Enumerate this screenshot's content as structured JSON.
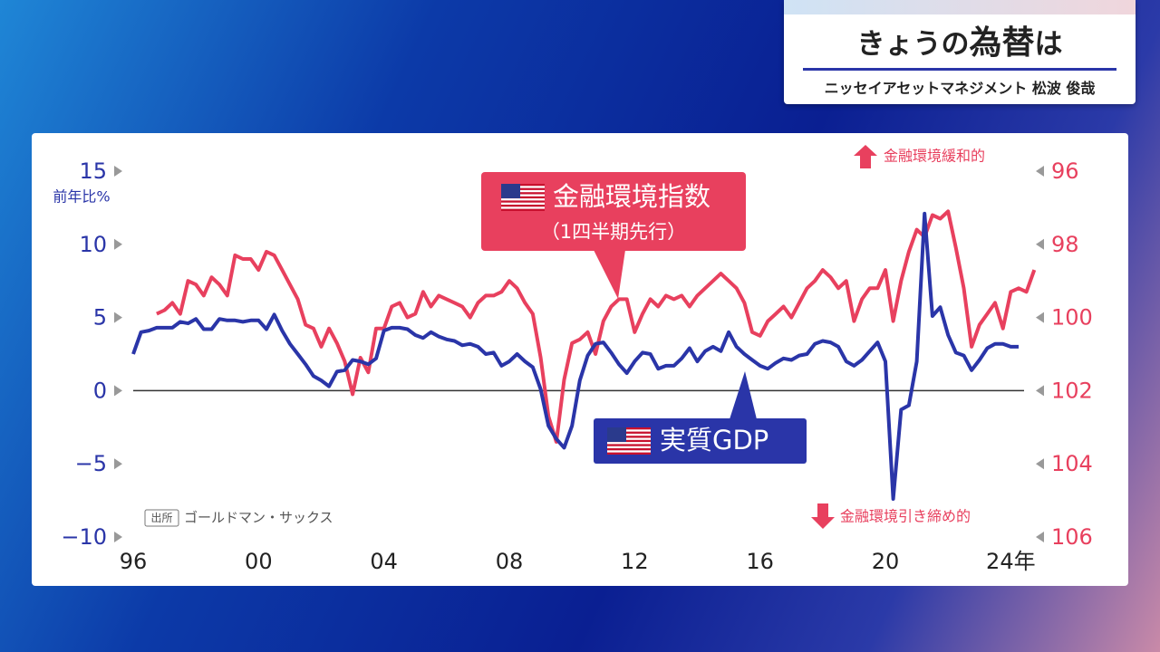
{
  "header": {
    "title": [
      "きょうの",
      "為替",
      "は"
    ],
    "subtitle": "ニッセイアセットマネジメント 松波 俊哉"
  },
  "chart_data": {
    "type": "line",
    "y_label": "前年比%",
    "annotations": {
      "fci_note": "（1四半期先行）",
      "easing": "金融環境緩和的",
      "tightening": "金融環境引き締め的",
      "source_tag": "出所",
      "source": "ゴールドマン・サックス"
    },
    "x": [
      1996,
      1996.25,
      1996.5,
      1996.75,
      1997,
      1997.25,
      1997.5,
      1997.75,
      1998,
      1998.25,
      1998.5,
      1998.75,
      1999,
      1999.25,
      1999.5,
      1999.75,
      2000,
      2000.25,
      2000.5,
      2000.75,
      2001,
      2001.25,
      2001.5,
      2001.75,
      2002,
      2002.25,
      2002.5,
      2002.75,
      2003,
      2003.25,
      2003.5,
      2003.75,
      2004,
      2004.25,
      2004.5,
      2004.75,
      2005,
      2005.25,
      2005.5,
      2005.75,
      2006,
      2006.25,
      2006.5,
      2006.75,
      2007,
      2007.25,
      2007.5,
      2007.75,
      2008,
      2008.25,
      2008.5,
      2008.75,
      2009,
      2009.25,
      2009.5,
      2009.75,
      2010,
      2010.25,
      2010.5,
      2010.75,
      2011,
      2011.25,
      2011.5,
      2011.75,
      2012,
      2012.25,
      2012.5,
      2012.75,
      2013,
      2013.25,
      2013.5,
      2013.75,
      2014,
      2014.25,
      2014.5,
      2014.75,
      2015,
      2015.25,
      2015.5,
      2015.75,
      2016,
      2016.25,
      2016.5,
      2016.75,
      2017,
      2017.25,
      2017.5,
      2017.75,
      2018,
      2018.25,
      2018.5,
      2018.75,
      2019,
      2019.25,
      2019.5,
      2019.75,
      2020,
      2020.25,
      2020.5,
      2020.75,
      2021,
      2021.25,
      2021.5,
      2021.75,
      2022,
      2022.25,
      2022.5,
      2022.75,
      2023,
      2023.25,
      2023.5,
      2023.75,
      2024,
      2024.25,
      2024.5,
      2024.75
    ],
    "series": [
      {
        "name": "実質GDP",
        "color": "#2a35a8",
        "axis": "y",
        "values": [
          2.5,
          4.0,
          4.1,
          4.3,
          4.3,
          4.3,
          4.7,
          4.6,
          4.9,
          4.2,
          4.2,
          4.9,
          4.8,
          4.8,
          4.7,
          4.8,
          4.8,
          4.2,
          5.2,
          4.1,
          3.2,
          2.5,
          1.8,
          1.0,
          0.7,
          0.3,
          1.3,
          1.4,
          2.1,
          2.0,
          1.8,
          2.2,
          4.1,
          4.3,
          4.3,
          4.2,
          3.8,
          3.6,
          4.0,
          3.7,
          3.5,
          3.4,
          3.1,
          3.2,
          3.0,
          2.5,
          2.6,
          1.7,
          2.0,
          2.5,
          2.0,
          1.6,
          0.1,
          -2.4,
          -3.3,
          -3.9,
          -2.4,
          0.7,
          2.4,
          3.2,
          3.3,
          2.6,
          1.8,
          1.2,
          2.0,
          2.6,
          2.5,
          1.5,
          1.7,
          1.7,
          2.2,
          2.9,
          2.0,
          2.7,
          3.0,
          2.7,
          4.0,
          3.0,
          2.5,
          2.1,
          1.7,
          1.5,
          1.9,
          2.2,
          2.1,
          2.4,
          2.5,
          3.2,
          3.4,
          3.3,
          3.0,
          2.0,
          1.7,
          2.1,
          2.7,
          3.3,
          2.0,
          -7.4,
          -1.3,
          -1.0,
          2.0,
          12.1,
          5.1,
          5.7,
          3.8,
          2.6,
          2.4,
          1.4,
          2.1,
          2.9,
          3.2,
          3.2,
          3.0,
          3.0,
          null,
          null
        ]
      },
      {
        "name": "金融環境指数",
        "color": "#e8405e",
        "axis": "y2",
        "values": [
          null,
          null,
          null,
          99.9,
          99.8,
          99.6,
          99.9,
          99.0,
          99.1,
          99.4,
          98.9,
          99.1,
          99.4,
          98.3,
          98.4,
          98.4,
          98.7,
          98.2,
          98.3,
          98.7,
          99.1,
          99.5,
          100.2,
          100.3,
          100.8,
          100.3,
          100.7,
          101.2,
          102.1,
          101.1,
          101.5,
          100.3,
          100.3,
          99.7,
          99.6,
          100.0,
          99.9,
          99.3,
          99.7,
          99.4,
          99.5,
          99.6,
          99.7,
          100.0,
          99.6,
          99.4,
          99.4,
          99.3,
          99.0,
          99.2,
          99.6,
          99.9,
          101.1,
          102.7,
          103.4,
          101.7,
          100.7,
          100.6,
          100.4,
          101.0,
          100.1,
          99.7,
          99.5,
          99.5,
          100.4,
          99.9,
          99.5,
          99.7,
          99.4,
          99.5,
          99.4,
          99.7,
          99.4,
          99.2,
          99.0,
          98.8,
          99.0,
          99.2,
          99.6,
          100.4,
          100.5,
          100.1,
          99.9,
          99.7,
          100.0,
          99.6,
          99.2,
          99.0,
          98.7,
          98.9,
          99.2,
          99.0,
          100.1,
          99.5,
          99.2,
          99.2,
          98.7,
          100.1,
          99.0,
          98.2,
          97.6,
          97.8,
          97.2,
          97.3,
          97.1,
          98.1,
          99.2,
          100.8,
          100.2,
          99.9,
          99.6,
          100.3,
          99.3,
          99.2,
          99.3,
          98.7
        ]
      }
    ],
    "xlim": [
      1996,
      2024.8
    ],
    "xticks": [
      {
        "value": 1996,
        "label": "96"
      },
      {
        "value": 2000,
        "label": "00"
      },
      {
        "value": 2004,
        "label": "04"
      },
      {
        "value": 2008,
        "label": "08"
      },
      {
        "value": 2012,
        "label": "12"
      },
      {
        "value": 2016,
        "label": "16"
      },
      {
        "value": 2020,
        "label": "20"
      },
      {
        "value": 2024,
        "label": "24年"
      }
    ],
    "ylim": [
      -10,
      15
    ],
    "yticks": [
      {
        "value": -10,
        "label": "−10"
      },
      {
        "value": -5,
        "label": "−5"
      },
      0,
      5,
      10,
      15
    ],
    "y2lim": [
      106,
      96
    ],
    "y2ticks": [
      96,
      98,
      100,
      102,
      104,
      106
    ],
    "zero_line": true
  }
}
